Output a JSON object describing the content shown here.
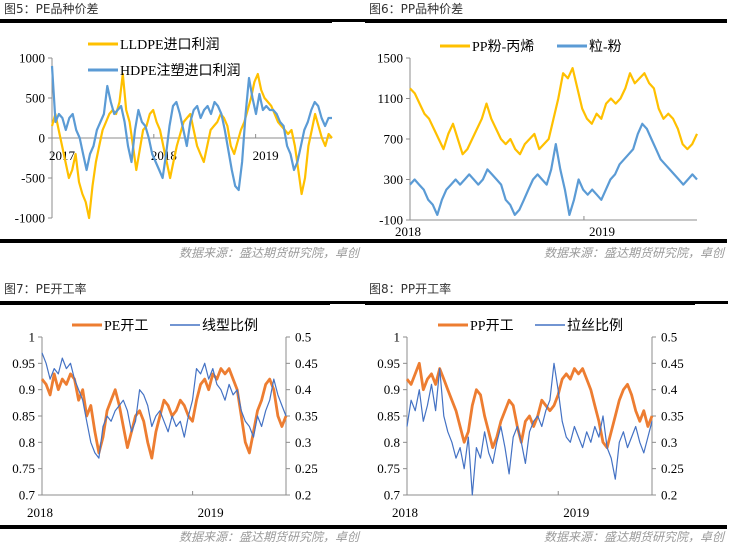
{
  "source_note": "数据来源：盛达期货研究院，卓创",
  "chart_data": [
    {
      "title": "图5：PE品种价差",
      "type": "line",
      "ylim": [
        -1000,
        1000
      ],
      "yticks": [
        "1000",
        "500",
        "0",
        "-500",
        "-1000"
      ],
      "ytick_values": [
        1000,
        500,
        0,
        -500,
        -1000
      ],
      "xlabels": [
        "2017",
        "2018",
        "2019"
      ],
      "xlabel_positions": [
        0,
        1,
        2
      ],
      "xrange": [
        0,
        2.75
      ],
      "grid": false,
      "legend": "top-left",
      "series": [
        {
          "name": "LLDPE进口利润",
          "color": "#FFC000",
          "axis": "left",
          "values": [
            150,
            300,
            100,
            -100,
            -300,
            -500,
            -400,
            -200,
            -550,
            -700,
            -800,
            -1000,
            -600,
            -300,
            -100,
            100,
            200,
            300,
            350,
            300,
            450,
            800,
            350,
            200,
            -100,
            -400,
            -150,
            100,
            150,
            300,
            350,
            200,
            100,
            -100,
            -300,
            -500,
            -300,
            -100,
            50,
            200,
            250,
            300,
            100,
            -100,
            -200,
            -300,
            -100,
            100,
            150,
            200,
            300,
            250,
            150,
            -100,
            -200,
            -50,
            100,
            200,
            350,
            500,
            700,
            800,
            600,
            500,
            450,
            400,
            300,
            200,
            150,
            100,
            50,
            100,
            -100,
            -400,
            -700,
            -500,
            -100,
            100,
            300,
            150,
            0,
            -100,
            50,
            0
          ]
        },
        {
          "name": "HDPE注塑进口利润",
          "color": "#5B9BD5",
          "axis": "left",
          "values": [
            900,
            200,
            300,
            250,
            100,
            250,
            300,
            100,
            0,
            -200,
            -400,
            -200,
            -100,
            100,
            200,
            300,
            650,
            450,
            300,
            350,
            400,
            200,
            -100,
            -300,
            100,
            350,
            200,
            150,
            0,
            -200,
            -300,
            -400,
            -500,
            -200,
            150,
            400,
            450,
            300,
            100,
            -100,
            200,
            350,
            400,
            250,
            350,
            400,
            300,
            450,
            400,
            300,
            100,
            -150,
            -400,
            -600,
            -650,
            -300,
            300,
            750,
            500,
            300,
            550,
            350,
            400,
            350,
            350,
            300,
            200,
            150,
            -100,
            -200,
            -400,
            -300,
            -100,
            100,
            200,
            350,
            450,
            400,
            250,
            150,
            250,
            250
          ]
        }
      ]
    },
    {
      "title": "图6：PP品种价差",
      "type": "line",
      "ylim": [
        -100,
        1500
      ],
      "yticks": [
        "1500",
        "1100",
        "700",
        "300",
        "-100"
      ],
      "ytick_values": [
        1500,
        1100,
        700,
        300,
        -100
      ],
      "xlabels": [
        "2018",
        "2019"
      ],
      "xlabel_positions": [
        0,
        1
      ],
      "xrange": [
        0,
        1.65
      ],
      "grid": false,
      "legend": "top",
      "series": [
        {
          "name": "PP粉-丙烯",
          "color": "#FFC000",
          "axis": "left",
          "values": [
            1200,
            1150,
            1050,
            950,
            900,
            800,
            700,
            600,
            750,
            850,
            700,
            550,
            600,
            700,
            800,
            900,
            1050,
            900,
            800,
            700,
            650,
            700,
            600,
            550,
            650,
            700,
            750,
            600,
            650,
            700,
            900,
            1100,
            1350,
            1300,
            1400,
            1200,
            1000,
            900,
            850,
            950,
            900,
            1050,
            1100,
            1050,
            1100,
            1200,
            1350,
            1250,
            1300,
            1350,
            1250,
            1200,
            1000,
            900,
            950,
            900,
            800,
            650,
            600,
            650,
            750
          ]
        },
        {
          "name": "粒-粉",
          "color": "#5B9BD5",
          "axis": "left",
          "values": [
            250,
            300,
            250,
            200,
            100,
            50,
            -50,
            100,
            200,
            250,
            300,
            250,
            300,
            350,
            300,
            250,
            300,
            400,
            350,
            300,
            250,
            100,
            50,
            -50,
            0,
            100,
            200,
            300,
            350,
            300,
            250,
            400,
            650,
            400,
            200,
            -50,
            100,
            300,
            200,
            150,
            200,
            150,
            100,
            200,
            300,
            350,
            450,
            500,
            550,
            600,
            750,
            850,
            800,
            700,
            600,
            500,
            450,
            400,
            350,
            300,
            250,
            300,
            350,
            300
          ]
        }
      ]
    },
    {
      "title": "图7：PE开工率",
      "type": "line",
      "ylim": [
        0.7,
        1.0
      ],
      "y2lim": [
        0.2,
        0.5
      ],
      "yticks": [
        "1",
        "0.95",
        "0.9",
        "0.85",
        "0.8",
        "0.75",
        "0.7"
      ],
      "ytick_values": [
        1,
        0.95,
        0.9,
        0.85,
        0.8,
        0.75,
        0.7
      ],
      "y2ticks": [
        "0.5",
        "0.45",
        "0.4",
        "0.35",
        "0.3",
        "0.25",
        "0.2"
      ],
      "y2tick_values": [
        0.5,
        0.45,
        0.4,
        0.35,
        0.3,
        0.25,
        0.2
      ],
      "xlabels": [
        "2018",
        "2019"
      ],
      "xlabel_positions": [
        0,
        1
      ],
      "xrange": [
        0,
        1.62
      ],
      "grid": false,
      "legend": "top",
      "series": [
        {
          "name": "PE开工",
          "color": "#ED7D31",
          "axis": "left",
          "values": [
            0.92,
            0.91,
            0.89,
            0.93,
            0.9,
            0.92,
            0.91,
            0.93,
            0.92,
            0.88,
            0.9,
            0.85,
            0.87,
            0.82,
            0.78,
            0.81,
            0.86,
            0.88,
            0.9,
            0.87,
            0.83,
            0.79,
            0.82,
            0.85,
            0.86,
            0.84,
            0.8,
            0.77,
            0.82,
            0.85,
            0.88,
            0.87,
            0.85,
            0.86,
            0.88,
            0.87,
            0.85,
            0.84,
            0.88,
            0.91,
            0.92,
            0.9,
            0.93,
            0.92,
            0.94,
            0.93,
            0.94,
            0.92,
            0.9,
            0.85,
            0.8,
            0.78,
            0.82,
            0.86,
            0.88,
            0.91,
            0.92,
            0.9,
            0.85,
            0.83,
            0.85
          ]
        },
        {
          "name": "线型比例",
          "color": "#4472C4",
          "axis": "right",
          "values": [
            0.47,
            0.45,
            0.42,
            0.44,
            0.43,
            0.46,
            0.44,
            0.45,
            0.42,
            0.4,
            0.38,
            0.34,
            0.3,
            0.28,
            0.27,
            0.33,
            0.35,
            0.34,
            0.36,
            0.37,
            0.38,
            0.36,
            0.32,
            0.34,
            0.4,
            0.39,
            0.37,
            0.33,
            0.35,
            0.36,
            0.34,
            0.32,
            0.35,
            0.33,
            0.34,
            0.31,
            0.35,
            0.38,
            0.44,
            0.43,
            0.45,
            0.42,
            0.44,
            0.41,
            0.4,
            0.38,
            0.41,
            0.39,
            0.4,
            0.36,
            0.34,
            0.33,
            0.31,
            0.35,
            0.33,
            0.36,
            0.38,
            0.42,
            0.39,
            0.37,
            0.35
          ]
        }
      ]
    },
    {
      "title": "图8：PP开工率",
      "type": "line",
      "ylim": [
        0.7,
        1.0
      ],
      "y2lim": [
        0.2,
        0.5
      ],
      "yticks": [
        "1",
        "0.95",
        "0.9",
        "0.85",
        "0.8",
        "0.75",
        "0.7"
      ],
      "ytick_values": [
        1,
        0.95,
        0.9,
        0.85,
        0.8,
        0.75,
        0.7
      ],
      "y2ticks": [
        "0.5",
        "0.45",
        "0.4",
        "0.35",
        "0.3",
        "0.25",
        "0.2"
      ],
      "y2tick_values": [
        0.5,
        0.45,
        0.4,
        0.35,
        0.3,
        0.25,
        0.2
      ],
      "xlabels": [
        "2018",
        "2019"
      ],
      "xlabel_positions": [
        0,
        1
      ],
      "xrange": [
        0,
        1.62
      ],
      "grid": false,
      "legend": "top",
      "series": [
        {
          "name": "PP开工",
          "color": "#ED7D31",
          "axis": "left",
          "values": [
            0.92,
            0.91,
            0.93,
            0.95,
            0.9,
            0.92,
            0.93,
            0.91,
            0.94,
            0.92,
            0.9,
            0.88,
            0.86,
            0.83,
            0.8,
            0.82,
            0.87,
            0.9,
            0.89,
            0.85,
            0.82,
            0.79,
            0.81,
            0.84,
            0.86,
            0.88,
            0.87,
            0.83,
            0.8,
            0.84,
            0.85,
            0.83,
            0.85,
            0.88,
            0.87,
            0.86,
            0.87,
            0.89,
            0.92,
            0.93,
            0.92,
            0.94,
            0.93,
            0.94,
            0.92,
            0.9,
            0.87,
            0.84,
            0.8,
            0.79,
            0.82,
            0.85,
            0.88,
            0.9,
            0.91,
            0.89,
            0.86,
            0.84,
            0.86,
            0.83,
            0.85
          ]
        },
        {
          "name": "拉丝比例",
          "color": "#4472C4",
          "axis": "right",
          "values": [
            0.33,
            0.38,
            0.36,
            0.4,
            0.34,
            0.37,
            0.41,
            0.36,
            0.44,
            0.35,
            0.32,
            0.3,
            0.27,
            0.29,
            0.25,
            0.31,
            0.2,
            0.29,
            0.27,
            0.32,
            0.28,
            0.26,
            0.3,
            0.33,
            0.29,
            0.24,
            0.31,
            0.33,
            0.3,
            0.26,
            0.32,
            0.34,
            0.35,
            0.33,
            0.36,
            0.38,
            0.45,
            0.4,
            0.34,
            0.31,
            0.3,
            0.33,
            0.31,
            0.29,
            0.32,
            0.3,
            0.33,
            0.31,
            0.35,
            0.29,
            0.27,
            0.23,
            0.3,
            0.32,
            0.29,
            0.31,
            0.33,
            0.3,
            0.28,
            0.31,
            0.34
          ]
        }
      ]
    }
  ]
}
